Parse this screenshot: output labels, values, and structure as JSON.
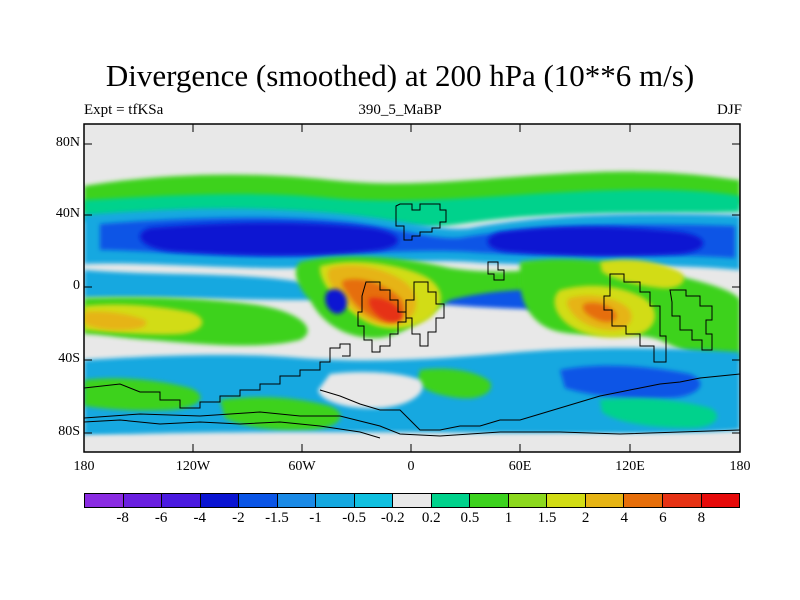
{
  "chart_data": {
    "type": "heatmap",
    "title": "Divergence (smoothed) at 200 hPa (10**6 m/s)",
    "subtitle_left": "Expt = tfKSa",
    "subtitle_center": "390_5_MaBP",
    "subtitle_right": "DJF",
    "x_range": [
      -180,
      180
    ],
    "y_range": [
      -90,
      90
    ],
    "x_tick_labels": [
      "180",
      "120W",
      "60W",
      "0",
      "60E",
      "120E",
      "180"
    ],
    "y_tick_labels": [
      "80N",
      "40N",
      "0",
      "40S",
      "80S"
    ],
    "colorbar_levels": [
      "-8",
      "-6",
      "-4",
      "-2",
      "-1.5",
      "-1",
      "-0.5",
      "-0.2",
      "0.2",
      "0.5",
      "1",
      "1.5",
      "2",
      "4",
      "6",
      "8"
    ],
    "colorbar_colors": [
      "#8a2be2",
      "#6a1fe0",
      "#4a1ae0",
      "#0a14d2",
      "#0a55e6",
      "#1a8ae6",
      "#14a8e0",
      "#10c0e0",
      "#e8e8e8",
      "#00d28c",
      "#3cd21e",
      "#8cd81e",
      "#d2dc14",
      "#e6b414",
      "#e66e0a",
      "#e63214",
      "#e60a0a"
    ],
    "regions": [
      {
        "lon": -100,
        "lat": 55,
        "value": 0.5
      },
      {
        "lon": 60,
        "lat": 55,
        "value": 0.5
      },
      {
        "lon": -110,
        "lat": 44,
        "value": -0.5
      },
      {
        "lon": -80,
        "lat": 28,
        "value": -4
      },
      {
        "lon": 70,
        "lat": 27,
        "value": -4
      },
      {
        "lon": -155,
        "lat": 8,
        "value": 1
      },
      {
        "lon": -40,
        "lat": 8,
        "value": 2
      },
      {
        "lon": -15,
        "lat": -15,
        "value": 6
      },
      {
        "lon": 100,
        "lat": -10,
        "value": 2
      },
      {
        "lon": 120,
        "lat": -5,
        "value": 4
      },
      {
        "lon": -160,
        "lat": -18,
        "value": 1.5
      },
      {
        "lon": 20,
        "lat": -60,
        "value": -0.5
      },
      {
        "lon": -120,
        "lat": -65,
        "value": 0.5
      }
    ]
  }
}
